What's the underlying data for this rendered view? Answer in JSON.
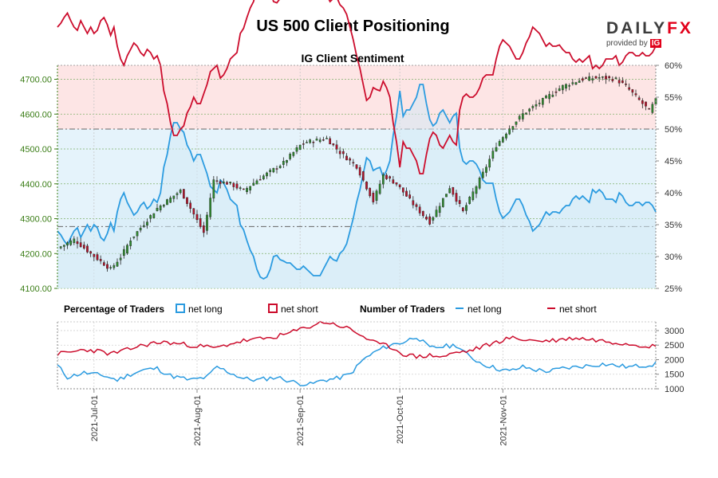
{
  "header": {
    "title": "US 500 Client Positioning"
  },
  "logo": {
    "brand_main": "DAILY",
    "brand_accent": "FX",
    "sub_text": "provided by",
    "sub_badge": "IG"
  },
  "colors": {
    "net_long": "#2b9be0",
    "net_short": "#cc0c2c",
    "bull": "#2e8b2e",
    "bear": "#b3122a",
    "price_axis": "#3a7d16"
  },
  "legend": {
    "pct_title": "Percentage of Traders",
    "pct_long": "net long",
    "pct_short": "net short",
    "num_title": "Number of Traders",
    "num_long": "net long",
    "num_short": "net short"
  },
  "chart_data": [
    {
      "type": "candlestick",
      "title": "IG Client Sentiment",
      "y_left": {
        "ylim": [
          4100,
          4740
        ],
        "ticks": [
          "4100.00",
          "4200.00",
          "4300.00",
          "4400.00",
          "4500.00",
          "4600.00",
          "4700.00"
        ]
      },
      "y_right": {
        "ylim": [
          25,
          60
        ],
        "ticks": [
          "25%",
          "30%",
          "35%",
          "40%",
          "45%",
          "50%",
          "55%",
          "60%"
        ]
      },
      "x_ticks": [
        "2021-Jul-01",
        "2021-Aug-01",
        "2021-Sep-01",
        "2021-Oct-01",
        "2021-Nov-01"
      ],
      "x_tick_positions": [
        11,
        42,
        73,
        103,
        134
      ],
      "n_days": 180,
      "reference_lines": [
        50,
        34.7
      ],
      "price_anchors": [
        [
          0,
          4215
        ],
        [
          5,
          4240
        ],
        [
          10,
          4200
        ],
        [
          16,
          4155
        ],
        [
          19,
          4190
        ],
        [
          22,
          4240
        ],
        [
          30,
          4330
        ],
        [
          37,
          4380
        ],
        [
          40,
          4330
        ],
        [
          44,
          4260
        ],
        [
          47,
          4410
        ],
        [
          52,
          4400
        ],
        [
          56,
          4380
        ],
        [
          60,
          4410
        ],
        [
          68,
          4460
        ],
        [
          73,
          4510
        ],
        [
          75,
          4520
        ],
        [
          81,
          4530
        ],
        [
          85,
          4490
        ],
        [
          90,
          4450
        ],
        [
          95,
          4350
        ],
        [
          98,
          4425
        ],
        [
          102,
          4400
        ],
        [
          108,
          4330
        ],
        [
          112,
          4290
        ],
        [
          118,
          4390
        ],
        [
          122,
          4320
        ],
        [
          128,
          4430
        ],
        [
          132,
          4510
        ],
        [
          136,
          4560
        ],
        [
          140,
          4600
        ],
        [
          146,
          4640
        ],
        [
          152,
          4680
        ],
        [
          158,
          4700
        ],
        [
          163,
          4705
        ],
        [
          168,
          4700
        ],
        [
          171,
          4680
        ],
        [
          175,
          4640
        ],
        [
          178,
          4610
        ],
        [
          180,
          4640
        ]
      ],
      "net_long_pct_anchors": [
        [
          0,
          34
        ],
        [
          1,
          33.4
        ],
        [
          2,
          32.5
        ],
        [
          3,
          31.8
        ],
        [
          4,
          33
        ],
        [
          5,
          34
        ],
        [
          6,
          34.5
        ],
        [
          7,
          33
        ],
        [
          8,
          34
        ],
        [
          9,
          35
        ],
        [
          10,
          34
        ],
        [
          11,
          35
        ],
        [
          12,
          34.5
        ],
        [
          13,
          33
        ],
        [
          14,
          32.5
        ],
        [
          15,
          33.6
        ],
        [
          16,
          35.3
        ],
        [
          17,
          34
        ],
        [
          18,
          37
        ],
        [
          19,
          39
        ],
        [
          20,
          40
        ],
        [
          21,
          38.5
        ],
        [
          22,
          37.5
        ],
        [
          23,
          36.5
        ],
        [
          24,
          37
        ],
        [
          25,
          38
        ],
        [
          26,
          38.5
        ],
        [
          27,
          37.5
        ],
        [
          28,
          38
        ],
        [
          29,
          39
        ],
        [
          30,
          38.5
        ],
        [
          31,
          40
        ],
        [
          32,
          44
        ],
        [
          33,
          46
        ],
        [
          34,
          49
        ],
        [
          35,
          51
        ],
        [
          36,
          51
        ],
        [
          37,
          50
        ],
        [
          38,
          49.5
        ],
        [
          39,
          47.5
        ],
        [
          40,
          46.5
        ],
        [
          41,
          45
        ],
        [
          42,
          46
        ],
        [
          43,
          46
        ],
        [
          44,
          44.5
        ],
        [
          45,
          43
        ],
        [
          46,
          41
        ],
        [
          47,
          40.5
        ],
        [
          48,
          40
        ],
        [
          49,
          42
        ],
        [
          50,
          41.5
        ],
        [
          51,
          40.5
        ],
        [
          52,
          39
        ],
        [
          53,
          38.5
        ],
        [
          54,
          38
        ],
        [
          55,
          35
        ],
        [
          56,
          34.2
        ],
        [
          57,
          32.5
        ],
        [
          58,
          31
        ],
        [
          59,
          30
        ],
        [
          60,
          28
        ],
        [
          61,
          26.8
        ],
        [
          62,
          26.5
        ],
        [
          63,
          26.8
        ],
        [
          64,
          28
        ],
        [
          65,
          30
        ],
        [
          66,
          30.2
        ],
        [
          67,
          29.5
        ],
        [
          68,
          29.3
        ],
        [
          69,
          29
        ],
        [
          70,
          29
        ],
        [
          71,
          28.5
        ],
        [
          72,
          28
        ],
        [
          73,
          28
        ],
        [
          74,
          28.5
        ],
        [
          75,
          28
        ],
        [
          76,
          27.5
        ],
        [
          77,
          27
        ],
        [
          78,
          27
        ],
        [
          79,
          27
        ],
        [
          80,
          28
        ],
        [
          81,
          29
        ],
        [
          82,
          30
        ],
        [
          83,
          29.5
        ],
        [
          84,
          29.3
        ],
        [
          85,
          30.5
        ],
        [
          86,
          31
        ],
        [
          87,
          32
        ],
        [
          88,
          34
        ],
        [
          89,
          36
        ],
        [
          90,
          38.5
        ],
        [
          91,
          40.5
        ],
        [
          92,
          43
        ],
        [
          93,
          45.5
        ],
        [
          94,
          45
        ],
        [
          95,
          43.5
        ],
        [
          96,
          43.8
        ],
        [
          97,
          44
        ],
        [
          98,
          42.5
        ],
        [
          99,
          43.5
        ],
        [
          100,
          45
        ],
        [
          101,
          49
        ],
        [
          102,
          52
        ],
        [
          103,
          56
        ],
        [
          104,
          52
        ],
        [
          105,
          53
        ],
        [
          106,
          53
        ],
        [
          107,
          54
        ],
        [
          108,
          55
        ],
        [
          109,
          57
        ],
        [
          110,
          57
        ],
        [
          111,
          54
        ],
        [
          112,
          51.5
        ],
        [
          113,
          50.5
        ],
        [
          114,
          51
        ],
        [
          115,
          52.5
        ],
        [
          116,
          53
        ],
        [
          117,
          52
        ],
        [
          118,
          51
        ],
        [
          119,
          52
        ],
        [
          120,
          52.5
        ],
        [
          121,
          47
        ],
        [
          122,
          45
        ],
        [
          123,
          44.5
        ],
        [
          124,
          45
        ],
        [
          125,
          45
        ],
        [
          126,
          44.5
        ],
        [
          127,
          43.5
        ],
        [
          128,
          42
        ],
        [
          129,
          41.5
        ],
        [
          130,
          41.5
        ],
        [
          131,
          41.5
        ],
        [
          132,
          39
        ],
        [
          133,
          37
        ],
        [
          134,
          36
        ],
        [
          135,
          36.5
        ],
        [
          136,
          37
        ],
        [
          137,
          38
        ],
        [
          138,
          39
        ],
        [
          139,
          39
        ],
        [
          140,
          38
        ],
        [
          141,
          36.5
        ],
        [
          142,
          35.5
        ],
        [
          143,
          34
        ],
        [
          144,
          34.5
        ],
        [
          145,
          35
        ],
        [
          146,
          36
        ],
        [
          147,
          37
        ],
        [
          148,
          36.5
        ],
        [
          149,
          37
        ],
        [
          150,
          37
        ],
        [
          151,
          36.8
        ],
        [
          152,
          37.5
        ],
        [
          153,
          38
        ],
        [
          154,
          38
        ],
        [
          155,
          39
        ],
        [
          156,
          39.5
        ],
        [
          157,
          39
        ],
        [
          158,
          39.5
        ],
        [
          159,
          39
        ],
        [
          160,
          38.5
        ],
        [
          161,
          40.5
        ],
        [
          162,
          40
        ],
        [
          163,
          40.5
        ],
        [
          164,
          40
        ],
        [
          165,
          39
        ],
        [
          166,
          39
        ],
        [
          167,
          39
        ],
        [
          168,
          38.5
        ],
        [
          169,
          40
        ],
        [
          170,
          39.5
        ],
        [
          171,
          38.5
        ],
        [
          172,
          38
        ],
        [
          173,
          38
        ],
        [
          174,
          38.5
        ],
        [
          175,
          38.5
        ],
        [
          176,
          38
        ],
        [
          177,
          38.5
        ],
        [
          178,
          38.5
        ],
        [
          179,
          38
        ],
        [
          180,
          37
        ]
      ],
      "number_of_traders": {
        "ylim": [
          1000,
          3300
        ],
        "ticks": [
          "1000",
          "1500",
          "2000",
          "2500",
          "3000"
        ],
        "net_long_anchors": [
          [
            0,
            1800
          ],
          [
            3,
            1400
          ],
          [
            8,
            1550
          ],
          [
            14,
            1450
          ],
          [
            18,
            1300
          ],
          [
            22,
            1500
          ],
          [
            26,
            1650
          ],
          [
            30,
            1700
          ],
          [
            34,
            1450
          ],
          [
            40,
            1300
          ],
          [
            45,
            1400
          ],
          [
            48,
            1750
          ],
          [
            52,
            1550
          ],
          [
            56,
            1350
          ],
          [
            60,
            1300
          ],
          [
            66,
            1400
          ],
          [
            72,
            1200
          ],
          [
            76,
            1150
          ],
          [
            80,
            1300
          ],
          [
            84,
            1350
          ],
          [
            88,
            1500
          ],
          [
            92,
            2000
          ],
          [
            96,
            2300
          ],
          [
            100,
            2500
          ],
          [
            104,
            2600
          ],
          [
            108,
            2800
          ],
          [
            112,
            2400
          ],
          [
            116,
            2450
          ],
          [
            120,
            2500
          ],
          [
            124,
            2100
          ],
          [
            128,
            1850
          ],
          [
            132,
            1700
          ],
          [
            136,
            1600
          ],
          [
            140,
            1750
          ],
          [
            144,
            1650
          ],
          [
            148,
            1600
          ],
          [
            152,
            1700
          ],
          [
            156,
            1750
          ],
          [
            160,
            1800
          ],
          [
            164,
            1850
          ],
          [
            168,
            1800
          ],
          [
            172,
            1750
          ],
          [
            176,
            1800
          ],
          [
            180,
            1850
          ]
        ],
        "net_short_anchors": [
          [
            0,
            2200
          ],
          [
            4,
            2250
          ],
          [
            8,
            2350
          ],
          [
            12,
            2300
          ],
          [
            16,
            2200
          ],
          [
            20,
            2300
          ],
          [
            24,
            2450
          ],
          [
            28,
            2550
          ],
          [
            32,
            2600
          ],
          [
            36,
            2550
          ],
          [
            40,
            2500
          ],
          [
            44,
            2450
          ],
          [
            48,
            2400
          ],
          [
            52,
            2550
          ],
          [
            56,
            2650
          ],
          [
            60,
            2700
          ],
          [
            64,
            2750
          ],
          [
            68,
            2850
          ],
          [
            72,
            3000
          ],
          [
            76,
            3150
          ],
          [
            80,
            3300
          ],
          [
            84,
            3200
          ],
          [
            88,
            3050
          ],
          [
            92,
            2800
          ],
          [
            96,
            2550
          ],
          [
            100,
            2450
          ],
          [
            104,
            2200
          ],
          [
            108,
            2100
          ],
          [
            112,
            2150
          ],
          [
            116,
            2100
          ],
          [
            120,
            2250
          ],
          [
            124,
            2300
          ],
          [
            128,
            2450
          ],
          [
            132,
            2600
          ],
          [
            136,
            2750
          ],
          [
            140,
            2700
          ],
          [
            144,
            2650
          ],
          [
            148,
            2650
          ],
          [
            152,
            2700
          ],
          [
            156,
            2750
          ],
          [
            160,
            2700
          ],
          [
            164,
            2650
          ],
          [
            168,
            2600
          ],
          [
            172,
            2550
          ],
          [
            176,
            2500
          ],
          [
            180,
            2450
          ]
        ]
      }
    }
  ]
}
